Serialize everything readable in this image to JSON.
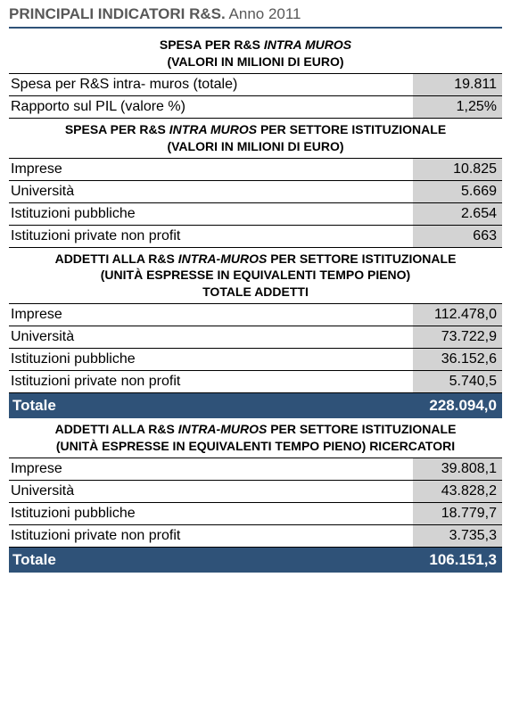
{
  "colors": {
    "title_text": "#585858",
    "title_border": "#2f5278",
    "row_border": "#000000",
    "shaded_bg": "#d3d3d3",
    "total_bg": "#2f5278",
    "total_text": "#ffffff",
    "body_text": "#000000"
  },
  "title": {
    "strong": "PRINCIPALI INDICATORI R&S.",
    "normal": " Anno 2011"
  },
  "section1": {
    "header_line1_a": "SPESA PER R&S ",
    "header_line1_b_italic": "INTRA MUROS",
    "header_line2": "(VALORI IN MILIONI DI EURO)",
    "rows": [
      {
        "label": "Spesa per R&S intra- muros (totale)",
        "value": "19.811"
      },
      {
        "label": "Rapporto sul PIL (valore %)",
        "value": "1,25%"
      }
    ]
  },
  "section2": {
    "header_line1_a": "SPESA PER R&S ",
    "header_line1_b_italic": "INTRA MUROS",
    "header_line1_c": " PER SETTORE ISTITUZIONALE",
    "header_line2": "(VALORI IN MILIONI DI EURO)",
    "rows": [
      {
        "label": "Imprese",
        "value": "10.825"
      },
      {
        "label": "Università",
        "value": "5.669"
      },
      {
        "label": "Istituzioni pubbliche",
        "value": "2.654"
      },
      {
        "label": "Istituzioni private non profit",
        "value": "663"
      }
    ]
  },
  "section3": {
    "header_line1_a": "ADDETTI ALLA R&S ",
    "header_line1_b_italic": "INTRA-MUROS",
    "header_line1_c": " PER SETTORE ISTITUZIONALE",
    "header_line2": "(UNITÀ ESPRESSE IN EQUIVALENTI TEMPO PIENO)",
    "header_line3": "TOTALE ADDETTI",
    "rows": [
      {
        "label": "Imprese",
        "value": "112.478,0"
      },
      {
        "label": "Università",
        "value": "73.722,9"
      },
      {
        "label": "Istituzioni pubbliche",
        "value": "36.152,6"
      },
      {
        "label": "Istituzioni private non profit",
        "value": "5.740,5"
      }
    ],
    "total_label": "Totale",
    "total_value": "228.094,0"
  },
  "section4": {
    "header_line1_a": "ADDETTI ALLA R&S ",
    "header_line1_b_italic": "INTRA-MUROS",
    "header_line1_c": " PER SETTORE ISTITUZIONALE",
    "header_line2": "(UNITÀ ESPRESSE IN EQUIVALENTI TEMPO PIENO) RICERCATORI",
    "rows": [
      {
        "label": "Imprese",
        "value": "39.808,1"
      },
      {
        "label": "Università",
        "value": "43.828,2"
      },
      {
        "label": "Istituzioni pubbliche",
        "value": "18.779,7"
      },
      {
        "label": "Istituzioni private non profit",
        "value": "3.735,3"
      }
    ],
    "total_label": "Totale",
    "total_value": "106.151,3"
  }
}
